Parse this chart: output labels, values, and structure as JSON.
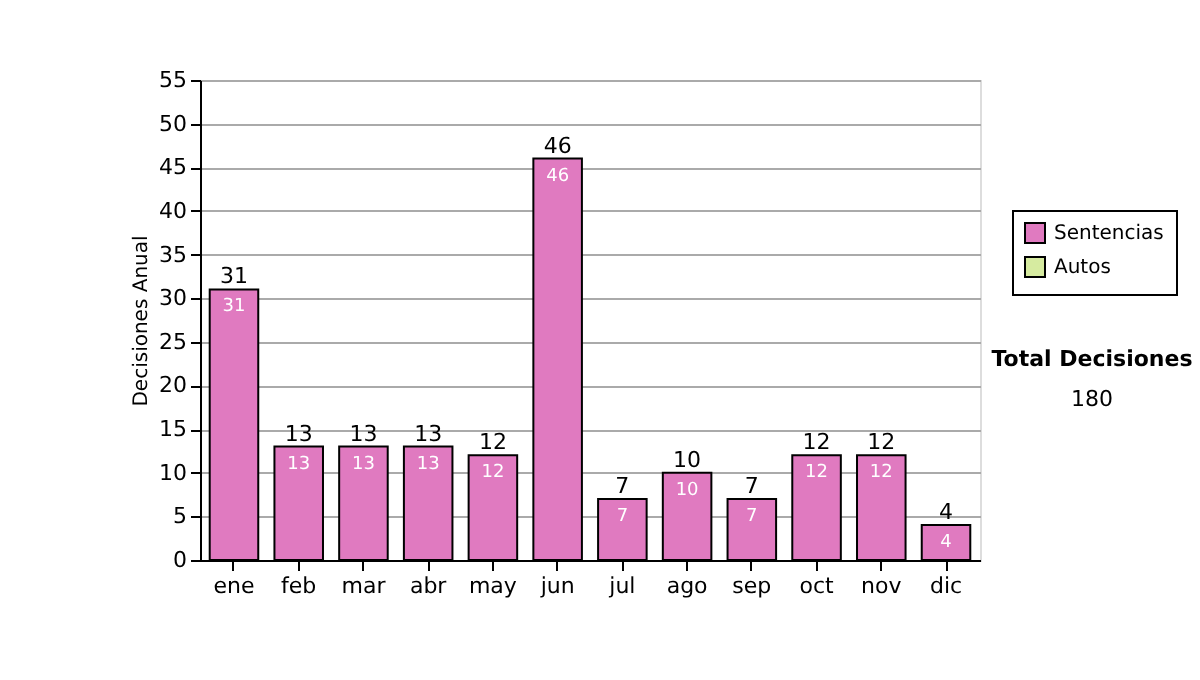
{
  "chart_data": {
    "type": "bar",
    "stacked": true,
    "ylabel": "Decisiones Anual",
    "categories": [
      "ene",
      "feb",
      "mar",
      "abr",
      "may",
      "jun",
      "jul",
      "ago",
      "sep",
      "oct",
      "nov",
      "dic"
    ],
    "series": [
      {
        "name": "Sentencias",
        "color": "#e07ac0",
        "values": [
          31,
          13,
          13,
          13,
          12,
          46,
          7,
          10,
          7,
          12,
          12,
          4
        ],
        "value_labels": [
          "31",
          "13",
          "13",
          "13",
          "12",
          "46",
          "7",
          "10",
          "7",
          "12",
          "12",
          "4"
        ]
      },
      {
        "name": "Autos",
        "color": "#d6eba0",
        "values": [
          null,
          null,
          null,
          null,
          null,
          null,
          null,
          null,
          null,
          null,
          null,
          null
        ]
      }
    ],
    "totals": [
      "31",
      "13",
      "13",
      "13",
      "12",
      "46",
      "7",
      "10",
      "7",
      "12",
      "12",
      "4"
    ],
    "ylim": [
      0,
      55
    ],
    "yticks": [
      0,
      5,
      10,
      15,
      20,
      25,
      30,
      35,
      40,
      45,
      50,
      55
    ],
    "grid": "y",
    "legend": "right",
    "annotations": [
      "Total Decisiones",
      "180"
    ]
  }
}
